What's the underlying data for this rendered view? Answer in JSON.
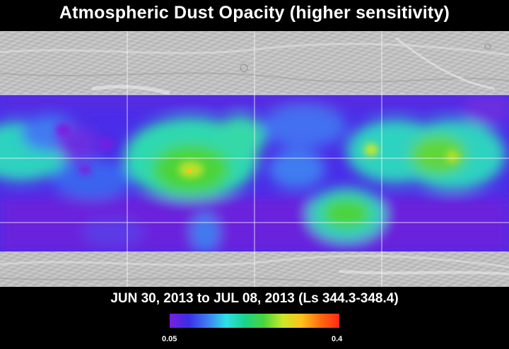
{
  "title": "Atmospheric Dust Opacity (higher sensitivity)",
  "date_range": "JUN 30, 2013 to JUL 08, 2013 (Ls 344.3-348.4)",
  "colorbar": {
    "min_label": "0.05",
    "max_label": "0.4",
    "colors": [
      "#7a1fe0",
      "#3a2ee6",
      "#3f7cf0",
      "#2ee0e6",
      "#19d38a",
      "#4bd43a",
      "#c9e82a",
      "#ffc21c",
      "#ff6a10",
      "#ff2a14"
    ]
  },
  "colors": {
    "background": "#000000",
    "terrain": "#c6c6c6",
    "grid": "#ffffff"
  }
}
